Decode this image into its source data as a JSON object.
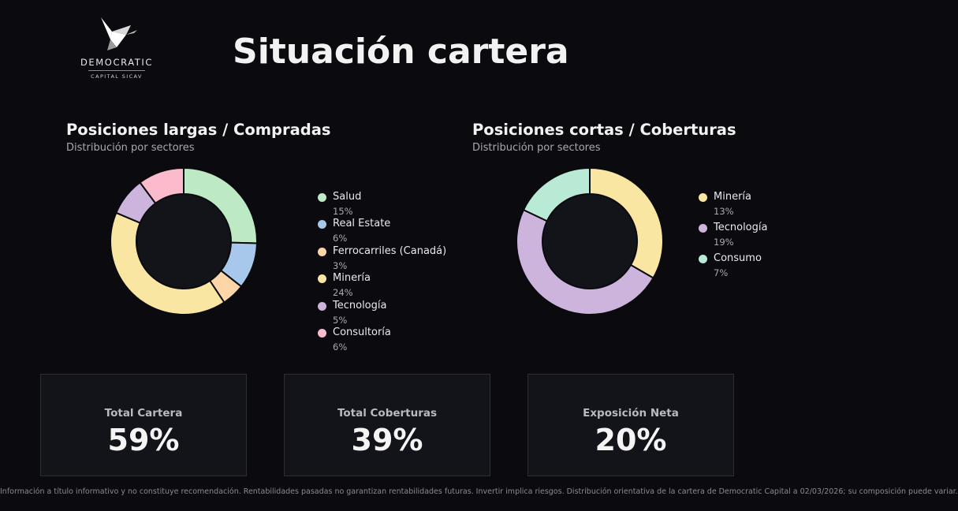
{
  "brand": {
    "name": "DEMOCRATIC",
    "sub": "CAPITAL SICAV"
  },
  "page": {
    "title": "Situación cartera"
  },
  "chart_data": [
    {
      "type": "pie",
      "variant": "donut",
      "title": "Posiciones largas / Compradas",
      "subtitle": "Distribución por sectores",
      "legend_position": "right",
      "slices": [
        {
          "label": "Salud",
          "value": 15,
          "value_text": "15%",
          "color": "#bde9c4"
        },
        {
          "label": "Real Estate",
          "value": 6,
          "value_text": "6%",
          "color": "#a7c8eb"
        },
        {
          "label": "Ferrocarriles (Canadá)",
          "value": 3,
          "value_text": "3%",
          "color": "#fcd6a8"
        },
        {
          "label": "Minería",
          "value": 24,
          "value_text": "24%",
          "color": "#f9e6a2"
        },
        {
          "label": "Tecnología",
          "value": 5,
          "value_text": "5%",
          "color": "#ccb4dc"
        },
        {
          "label": "Consultoría",
          "value": 6,
          "value_text": "6%",
          "color": "#fcbacd"
        }
      ]
    },
    {
      "type": "pie",
      "variant": "donut",
      "title": "Posiciones cortas / Coberturas",
      "subtitle": "Distribución por sectores",
      "legend_position": "right",
      "slices": [
        {
          "label": "Minería",
          "value": 13,
          "value_text": "13%",
          "color": "#f9e6a2"
        },
        {
          "label": "Tecnología",
          "value": 19,
          "value_text": "19%",
          "color": "#ccb4dc"
        },
        {
          "label": "Consumo",
          "value": 7,
          "value_text": "7%",
          "color": "#b9ead6"
        }
      ]
    }
  ],
  "kpis": {
    "total": {
      "label": "Total Cartera",
      "value": "59%"
    },
    "coverage": {
      "label": "Total Coberturas",
      "value": "39%"
    },
    "net": {
      "label": "Exposición Neta",
      "value": "20%"
    }
  },
  "footer": {
    "disclaimer": "Información a título informativo y no constituye recomendación. Rentabilidades pasadas no garantizan rentabilidades futuras. Invertir implica riesgos. Distribución orientativa de la cartera de Democratic Capital a 02/03/2026; su composición puede variar."
  }
}
